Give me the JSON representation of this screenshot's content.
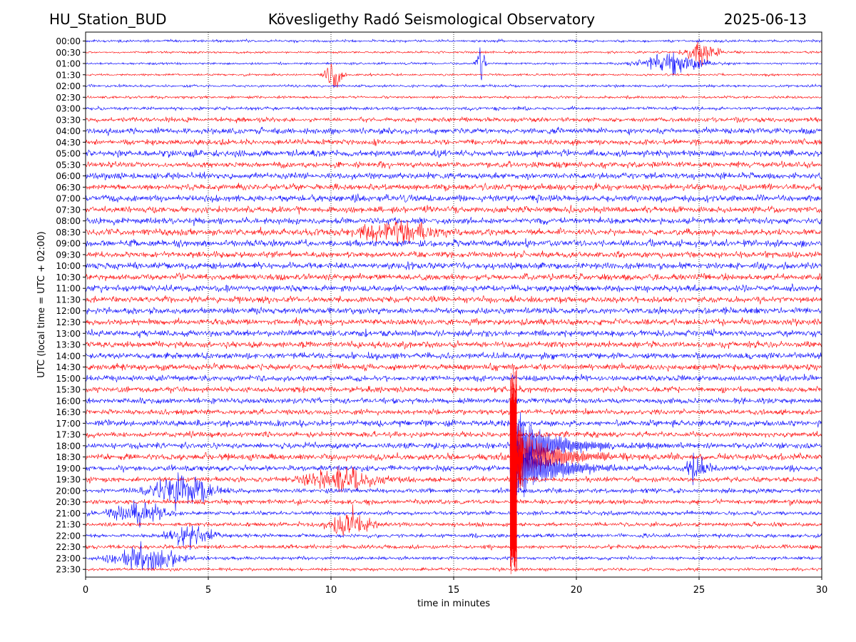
{
  "header": {
    "station": "HU_Station_BUD",
    "observatory": "Kövesligethy Radó Seismological Observatory",
    "date": "2025-06-13"
  },
  "chart_data": {
    "type": "seismogram",
    "title": "Kövesligethy Radó Seismological Observatory",
    "xlabel": "time in minutes",
    "ylabel": "UTC (local time = UTC + 02:00)",
    "xlim": [
      0,
      30
    ],
    "xticks": [
      0,
      5,
      10,
      15,
      20,
      25,
      30
    ],
    "vertical_grid": "dotted",
    "row_labels": [
      "00:00",
      "00:30",
      "01:00",
      "01:30",
      "02:00",
      "02:30",
      "03:00",
      "03:30",
      "04:00",
      "04:30",
      "05:00",
      "05:30",
      "06:00",
      "06:30",
      "07:00",
      "07:30",
      "08:00",
      "08:30",
      "09:00",
      "09:30",
      "10:00",
      "10:30",
      "11:00",
      "11:30",
      "12:00",
      "12:30",
      "13:00",
      "13:30",
      "14:00",
      "14:30",
      "15:00",
      "15:30",
      "16:00",
      "16:30",
      "17:00",
      "17:30",
      "18:00",
      "18:30",
      "19:00",
      "19:30",
      "20:00",
      "20:30",
      "21:00",
      "21:30",
      "22:00",
      "22:30",
      "23:00",
      "23:30"
    ],
    "row_colors": [
      "#0000ff",
      "#ff0000"
    ],
    "noise_level": [
      0.35,
      0.3,
      0.3,
      0.3,
      0.35,
      0.35,
      0.45,
      0.6,
      0.8,
      0.75,
      0.85,
      0.8,
      0.85,
      0.85,
      0.9,
      0.85,
      0.85,
      0.9,
      0.9,
      0.85,
      0.9,
      0.85,
      0.85,
      0.85,
      0.85,
      0.85,
      0.85,
      0.85,
      0.85,
      0.85,
      0.8,
      0.75,
      0.75,
      0.7,
      0.8,
      0.75,
      0.8,
      0.85,
      0.75,
      0.7,
      0.65,
      0.65,
      0.55,
      0.55,
      0.5,
      0.55,
      0.45,
      0.4
    ],
    "bursts": [
      {
        "row": 1,
        "minute": 25.1,
        "amplitude": 1.8,
        "duration": 0.6
      },
      {
        "row": 2,
        "minute": 16.1,
        "amplitude": 3.2,
        "duration": 0.15
      },
      {
        "row": 2,
        "minute": 24.0,
        "amplitude": 1.6,
        "duration": 1.2
      },
      {
        "row": 3,
        "minute": 10.1,
        "amplitude": 2.2,
        "duration": 0.3
      },
      {
        "row": 17,
        "minute": 12.8,
        "amplitude": 1.5,
        "duration": 1.5
      },
      {
        "row": 38,
        "minute": 24.9,
        "amplitude": 1.8,
        "duration": 0.5
      },
      {
        "row": 39,
        "minute": 10.5,
        "amplitude": 1.6,
        "duration": 1.5
      },
      {
        "row": 40,
        "minute": 3.9,
        "amplitude": 2.5,
        "duration": 1.2
      },
      {
        "row": 42,
        "minute": 2.2,
        "amplitude": 1.7,
        "duration": 1.0
      },
      {
        "row": 43,
        "minute": 10.8,
        "amplitude": 2.0,
        "duration": 0.8
      },
      {
        "row": 44,
        "minute": 4.3,
        "amplitude": 1.6,
        "duration": 0.8
      },
      {
        "row": 46,
        "minute": 2.5,
        "amplitude": 2.0,
        "duration": 1.2
      }
    ],
    "earthquake": {
      "row": 37,
      "onset_minute": 17.3,
      "peak_amplitude_rows": 4.5,
      "coda_end_minute": 24.5,
      "spike_rows": [
        29,
        47
      ]
    }
  }
}
